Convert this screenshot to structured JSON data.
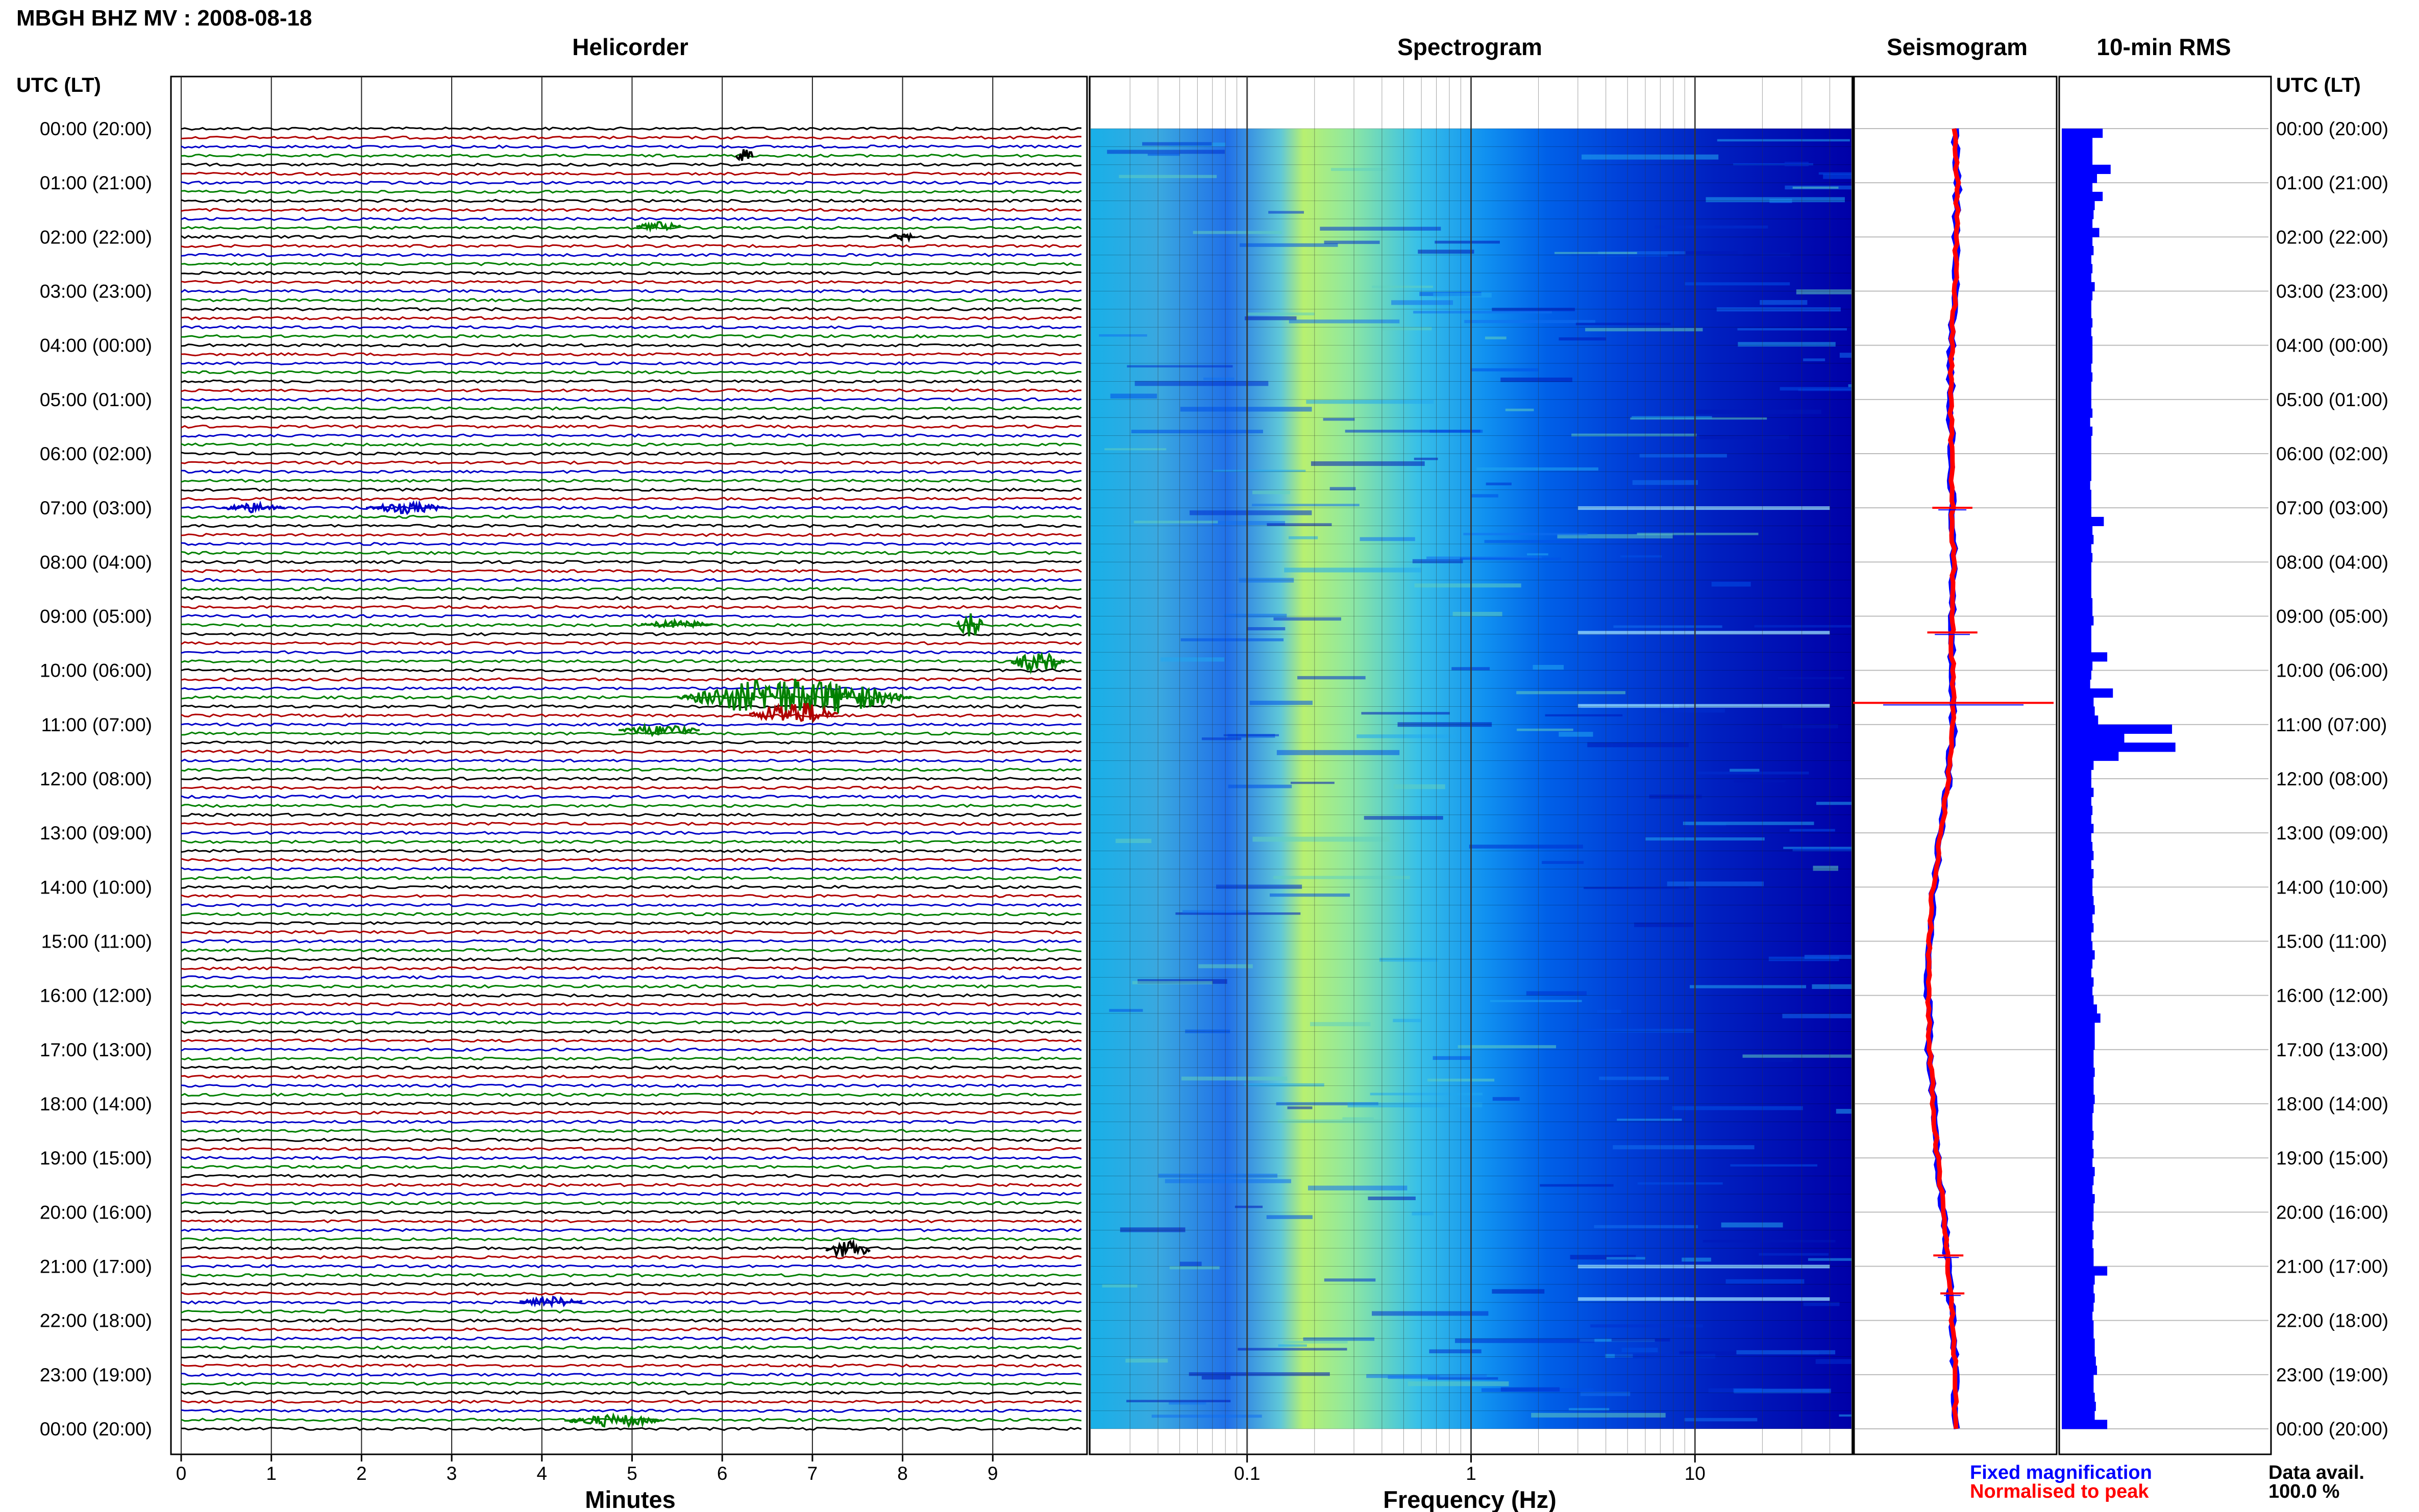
{
  "page_title": "MBGH BHZ MV : 2008-08-18",
  "utc_label": "UTC (LT)",
  "time_labels": [
    "00:00 (20:00)",
    "01:00 (21:00)",
    "02:00 (22:00)",
    "03:00 (23:00)",
    "04:00 (00:00)",
    "05:00 (01:00)",
    "06:00 (02:00)",
    "07:00 (03:00)",
    "08:00 (04:00)",
    "09:00 (05:00)",
    "10:00 (06:00)",
    "11:00 (07:00)",
    "12:00 (08:00)",
    "13:00 (09:00)",
    "14:00 (10:00)",
    "15:00 (11:00)",
    "16:00 (12:00)",
    "17:00 (13:00)",
    "18:00 (14:00)",
    "19:00 (15:00)",
    "20:00 (16:00)",
    "21:00 (17:00)",
    "22:00 (18:00)",
    "23:00 (19:00)",
    "00:00 (20:00)"
  ],
  "colors": {
    "trace_cycle": [
      "#000000",
      "#b00000",
      "#0000c8",
      "#008000"
    ],
    "fixed": "#0000ff",
    "normalised": "#ff0000",
    "rms_bar": "#0000ff"
  },
  "chart_data": [
    {
      "type": "line",
      "name": "helicorder",
      "title": "Helicorder",
      "xlabel": "Minutes",
      "x_ticks": [
        "0",
        "1",
        "2",
        "3",
        "4",
        "5",
        "6",
        "7",
        "8",
        "9"
      ],
      "xlim": [
        0,
        10
      ],
      "rows_per_hour": 6,
      "events": [
        {
          "hour": 0.5,
          "minute": 6.25,
          "amp": 1.0,
          "dur": 0.2,
          "color_index": 0
        },
        {
          "hour": 1.8,
          "minute": 5.3,
          "amp": 0.35,
          "dur": 0.5,
          "color_index": 3
        },
        {
          "hour": 2.0,
          "minute": 8.0,
          "amp": 0.35,
          "dur": 0.3,
          "color_index": 0
        },
        {
          "hour": 7.0,
          "minute": 0.8,
          "amp": 0.4,
          "dur": 0.7,
          "color_index": 2
        },
        {
          "hour": 7.0,
          "minute": 2.5,
          "amp": 0.45,
          "dur": 0.9,
          "color_index": 2
        },
        {
          "hour": 9.15,
          "minute": 8.75,
          "amp": 1.2,
          "dur": 0.3,
          "color_index": 3
        },
        {
          "hour": 9.15,
          "minute": 5.5,
          "amp": 0.3,
          "dur": 0.8,
          "color_index": 3
        },
        {
          "hour": 9.85,
          "minute": 9.5,
          "amp": 0.8,
          "dur": 0.6,
          "color_index": 3
        },
        {
          "hour": 10.5,
          "minute": 6.8,
          "amp": 1.6,
          "dur": 2.6,
          "color_index": 3
        },
        {
          "hour": 10.8,
          "minute": 6.8,
          "amp": 1.0,
          "dur": 1.0,
          "color_index": 1
        },
        {
          "hour": 11.1,
          "minute": 5.3,
          "amp": 0.45,
          "dur": 0.9,
          "color_index": 3
        },
        {
          "hour": 20.7,
          "minute": 7.4,
          "amp": 0.7,
          "dur": 0.5,
          "color_index": 0
        },
        {
          "hour": 21.65,
          "minute": 4.1,
          "amp": 0.4,
          "dur": 0.7,
          "color_index": 2
        },
        {
          "hour": 23.85,
          "minute": 4.8,
          "amp": 0.5,
          "dur": 1.1,
          "color_index": 3
        }
      ]
    },
    {
      "type": "heatmap",
      "name": "spectrogram",
      "title": "Spectrogram",
      "xlabel": "Frequency (Hz)",
      "x_scale": "log",
      "xlim": [
        0.02,
        50
      ],
      "x_ticks": [
        0.1,
        1,
        10
      ],
      "x_tick_labels": [
        "0.1",
        "1",
        "10"
      ],
      "peak_frequency_hz": 0.25,
      "colormap": [
        "#0000b0",
        "#0028d8",
        "#0060f0",
        "#10a0f0",
        "#40c8e0",
        "#80e0a0",
        "#c8f060"
      ]
    },
    {
      "type": "line",
      "name": "seismogram",
      "title": "Seismogram",
      "xlim": [
        -1,
        1
      ],
      "baseline_by_hour": [
        0.0,
        0.02,
        0.01,
        0.0,
        -0.04,
        -0.05,
        -0.04,
        -0.03,
        -0.02,
        -0.03,
        -0.03,
        -0.02,
        -0.07,
        -0.14,
        -0.22,
        -0.26,
        -0.27,
        -0.26,
        -0.22,
        -0.18,
        -0.12,
        -0.07,
        -0.03,
        0.0,
        0.0
      ],
      "spikes": [
        {
          "hour": 10.6,
          "amp": 1.0
        },
        {
          "hour": 7.0,
          "amp": 0.2
        },
        {
          "hour": 9.3,
          "amp": 0.25
        },
        {
          "hour": 20.8,
          "amp": 0.15
        },
        {
          "hour": 21.5,
          "amp": 0.12
        }
      ],
      "legend": [
        "Fixed magnification",
        "Normalised to peak"
      ]
    },
    {
      "type": "bar",
      "name": "rms",
      "title": "10-min RMS",
      "orientation": "horizontal",
      "xlim": [
        0,
        1
      ],
      "values": [
        0.36,
        0.27,
        0.27,
        0.27,
        0.43,
        0.31,
        0.27,
        0.36,
        0.29,
        0.28,
        0.27,
        0.33,
        0.27,
        0.28,
        0.26,
        0.27,
        0.26,
        0.29,
        0.27,
        0.26,
        0.26,
        0.27,
        0.26,
        0.27,
        0.27,
        0.27,
        0.26,
        0.27,
        0.26,
        0.26,
        0.26,
        0.27,
        0.25,
        0.27,
        0.26,
        0.26,
        0.26,
        0.26,
        0.26,
        0.25,
        0.26,
        0.26,
        0.26,
        0.37,
        0.27,
        0.28,
        0.26,
        0.27,
        0.26,
        0.26,
        0.26,
        0.26,
        0.27,
        0.27,
        0.28,
        0.26,
        0.26,
        0.26,
        0.4,
        0.27,
        0.26,
        0.25,
        0.45,
        0.28,
        0.29,
        0.32,
        0.97,
        0.55,
        1.0,
        0.5,
        0.28,
        0.26,
        0.26,
        0.28,
        0.26,
        0.27,
        0.26,
        0.28,
        0.26,
        0.27,
        0.28,
        0.26,
        0.28,
        0.27,
        0.27,
        0.28,
        0.29,
        0.27,
        0.28,
        0.26,
        0.27,
        0.29,
        0.27,
        0.26,
        0.28,
        0.27,
        0.28,
        0.31,
        0.34,
        0.29,
        0.29,
        0.29,
        0.28,
        0.28,
        0.29,
        0.28,
        0.28,
        0.29,
        0.28,
        0.27,
        0.27,
        0.28,
        0.27,
        0.28,
        0.27,
        0.29,
        0.28,
        0.27,
        0.29,
        0.28,
        0.28,
        0.27,
        0.28,
        0.27,
        0.28,
        0.28,
        0.4,
        0.29,
        0.28,
        0.29,
        0.28,
        0.27,
        0.28,
        0.28,
        0.29,
        0.29,
        0.3,
        0.31,
        0.28,
        0.28,
        0.29,
        0.3,
        0.29,
        0.4
      ]
    }
  ],
  "legend": {
    "fixed": "Fixed magnification",
    "normalised": "Normalised to peak"
  },
  "data_avail_label": "Data avail.",
  "data_avail_value": "100.0 %"
}
